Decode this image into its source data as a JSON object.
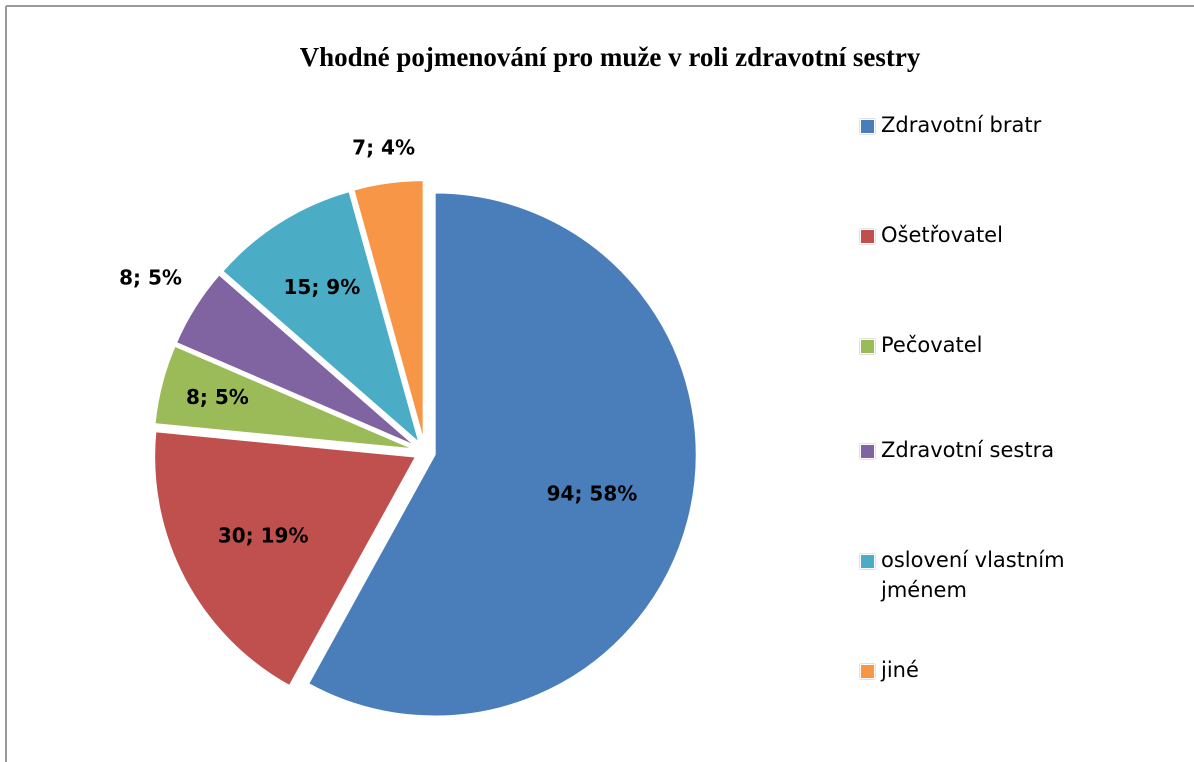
{
  "chart_data": {
    "type": "pie",
    "title": "Vhodné pojmenování pro muže v roli zdravotní sestry",
    "categories": [
      "Zdravotní bratr",
      "Ošetřovatel",
      "Pečovatel",
      "Zdravotní sestra",
      "oslovení vlastním jménem",
      "jiné"
    ],
    "values": [
      94,
      30,
      8,
      8,
      15,
      7
    ],
    "value_labels": [
      "94; 58%",
      "30; 19%",
      "8; 5%",
      "8; 5%",
      "15; 9%",
      "7; 4%"
    ],
    "colors": [
      "#4a7ebb",
      "#c0504d",
      "#9bbb59",
      "#8064a2",
      "#4bacc6",
      "#f79646"
    ],
    "legend": "right"
  }
}
